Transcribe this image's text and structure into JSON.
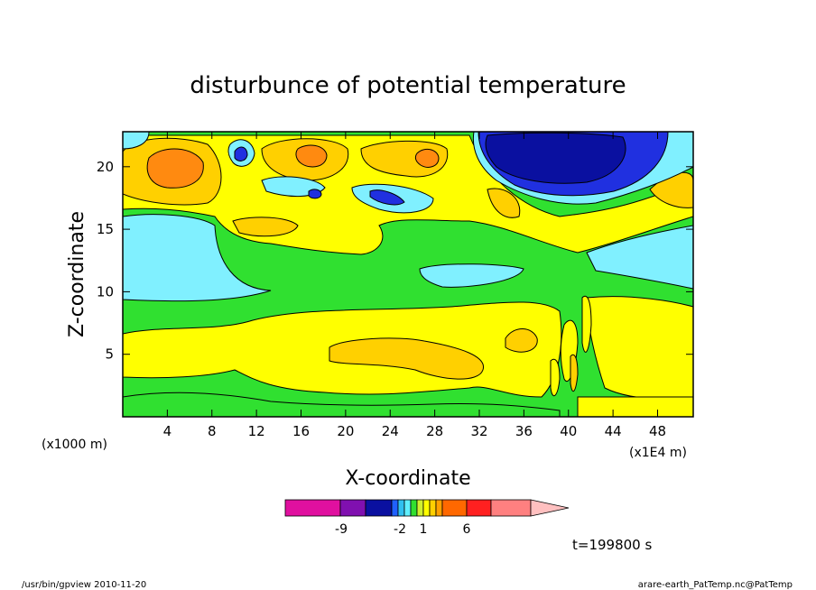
{
  "chart_data": {
    "type": "heatmap",
    "title": "disturbunce of potential temperature",
    "xlabel": "X-coordinate",
    "ylabel": "Z-coordinate",
    "x_unit_left": "(x1000 m)",
    "x_unit_right": "(x1E4 m)",
    "xlim": [
      0,
      51.2
    ],
    "ylim": [
      0,
      22.8
    ],
    "x_ticks": [
      4,
      8,
      12,
      16,
      20,
      24,
      28,
      32,
      36,
      40,
      44,
      48
    ],
    "y_ticks": [
      5,
      10,
      15,
      20
    ],
    "time_label": "t=199800 s",
    "colorbar": {
      "labels": [
        "-9",
        "-2",
        "1",
        "6"
      ],
      "colors": [
        "#e0109f",
        "#8010b0",
        "#0a10a0",
        "#2060ff",
        "#30c0f0",
        "#60f0ff",
        "#30e030",
        "#d0f030",
        "#ffff00",
        "#ffd000",
        "#ffa000",
        "#ff6800",
        "#ff2020",
        "#ff8080",
        "#ffc0c0"
      ]
    },
    "field_colors": {
      "green": "#30e030",
      "yellow": "#ffff00",
      "lightyellow": "#ffd000",
      "orange": "#ff8a10",
      "cyan": "#30d0ff",
      "lightcyan": "#80f0ff",
      "blue": "#2030e0",
      "darkblue": "#0a10a0"
    }
  },
  "footer": {
    "left": "/usr/bin/gpview  2010-11-20",
    "right": "arare-earth_PatTemp.nc@PatTemp"
  }
}
